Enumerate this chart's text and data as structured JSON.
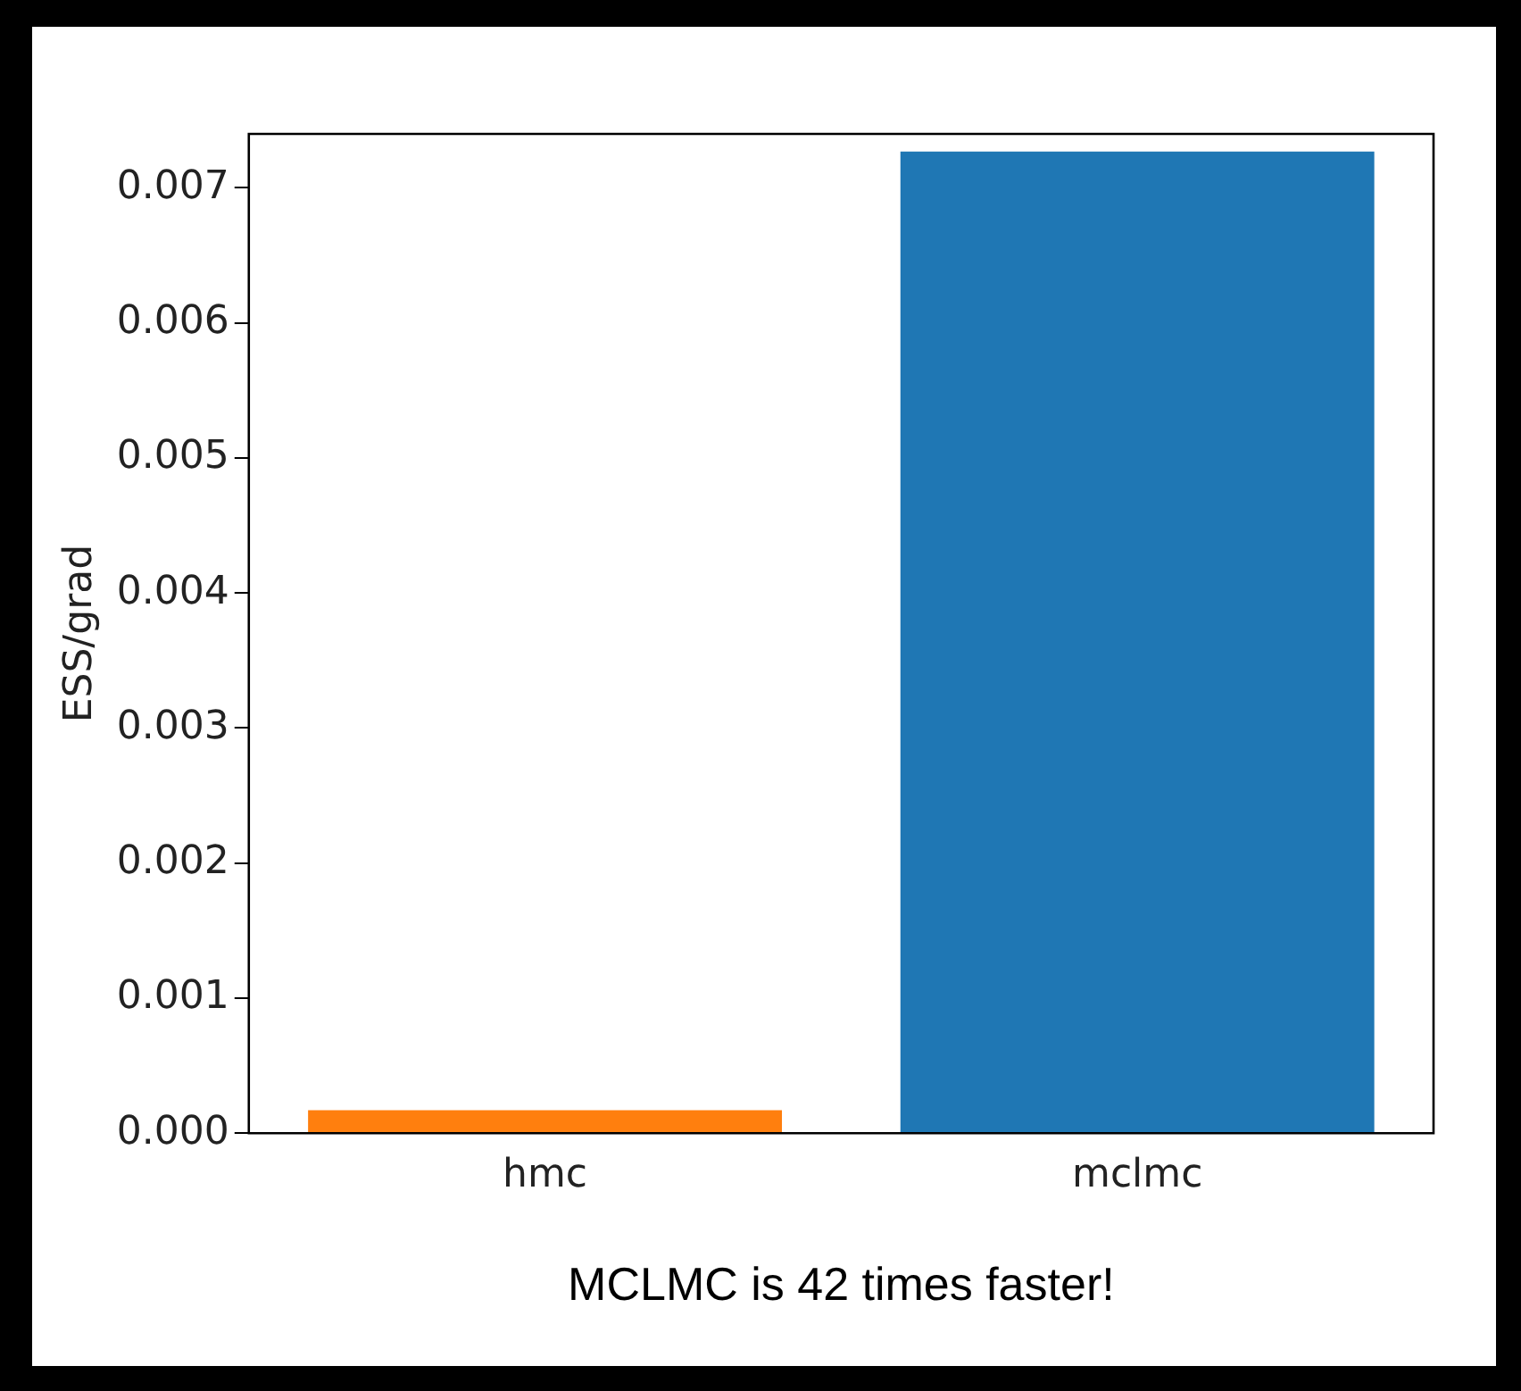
{
  "chart_data": {
    "type": "bar",
    "ylabel": "ESS/grad",
    "categories": [
      "hmc",
      "mclmc"
    ],
    "values": [
      0.00017,
      0.00727
    ],
    "colors": [
      "#ff7f0e",
      "#1f77b4"
    ],
    "ylim": [
      0,
      0.0074
    ],
    "yticks": [
      {
        "value": 0,
        "label": "0.000"
      },
      {
        "value": 0.001,
        "label": "0.001"
      },
      {
        "value": 0.002,
        "label": "0.002"
      },
      {
        "value": 0.003,
        "label": "0.003"
      },
      {
        "value": 0.004,
        "label": "0.004"
      },
      {
        "value": 0.005,
        "label": "0.005"
      },
      {
        "value": 0.006,
        "label": "0.006"
      },
      {
        "value": 0.007,
        "label": "0.007"
      }
    ],
    "grid": false,
    "legend": false,
    "annotations": [
      "MCLMC is 42 times faster!"
    ]
  }
}
